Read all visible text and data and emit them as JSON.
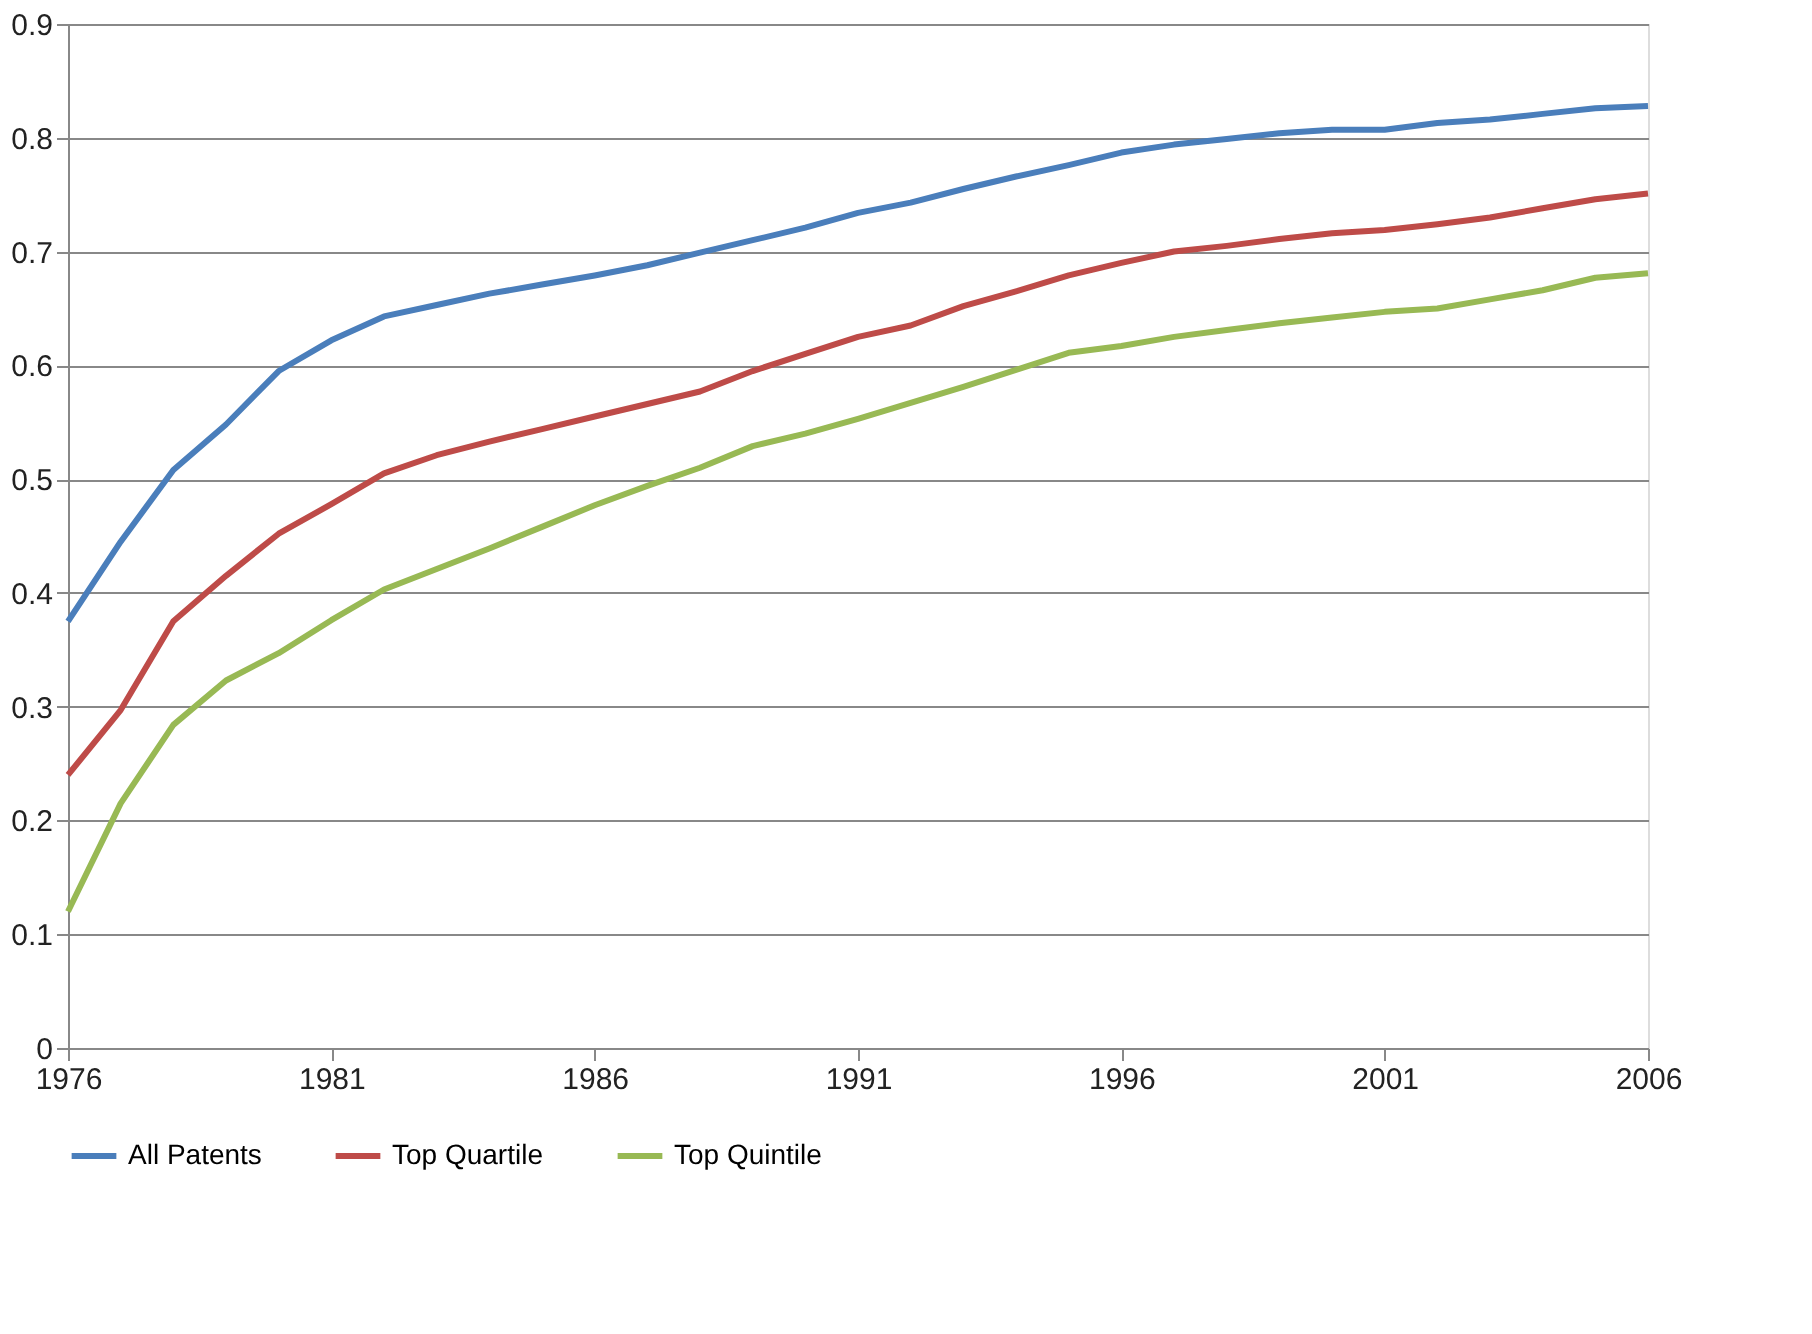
{
  "chart_data": {
    "type": "line",
    "x": [
      1976,
      1977,
      1978,
      1979,
      1980,
      1981,
      1982,
      1983,
      1984,
      1985,
      1986,
      1987,
      1988,
      1989,
      1990,
      1991,
      1992,
      1993,
      1994,
      1995,
      1996,
      1997,
      1998,
      1999,
      2000,
      2001,
      2002,
      2003,
      2004,
      2005,
      2006
    ],
    "series": [
      {
        "name": "All Patents",
        "color": "#4a7ebb",
        "values": [
          0.375,
          0.445,
          0.508,
          0.548,
          0.595,
          0.622,
          0.643,
          0.653,
          0.663,
          0.671,
          0.679,
          0.688,
          0.699,
          0.71,
          0.721,
          0.734,
          0.743,
          0.755,
          0.766,
          0.776,
          0.787,
          0.794,
          0.799,
          0.804,
          0.807,
          0.807,
          0.813,
          0.816,
          0.821,
          0.826,
          0.828
        ]
      },
      {
        "name": "Top Quartile",
        "color": "#be4b48",
        "values": [
          0.24,
          0.297,
          0.375,
          0.415,
          0.452,
          0.478,
          0.505,
          0.521,
          0.533,
          0.544,
          0.555,
          0.566,
          0.577,
          0.595,
          0.61,
          0.625,
          0.635,
          0.652,
          0.665,
          0.679,
          0.69,
          0.7,
          0.705,
          0.711,
          0.716,
          0.719,
          0.724,
          0.73,
          0.738,
          0.746,
          0.751
        ]
      },
      {
        "name": "Top Quintile",
        "color": "#98b954",
        "values": [
          0.12,
          0.215,
          0.284,
          0.323,
          0.347,
          0.376,
          0.403,
          0.421,
          0.439,
          0.458,
          0.477,
          0.494,
          0.51,
          0.529,
          0.54,
          0.553,
          0.567,
          0.581,
          0.596,
          0.611,
          0.617,
          0.625,
          0.631,
          0.637,
          0.642,
          0.647,
          0.65,
          0.658,
          0.666,
          0.677,
          0.681
        ]
      }
    ],
    "xlim": [
      1976,
      2006
    ],
    "xticks": [
      1976,
      1981,
      1986,
      1991,
      1996,
      2001,
      2006
    ],
    "ylim": [
      0,
      0.9
    ],
    "yticks": [
      0,
      0.1,
      0.2,
      0.3,
      0.4,
      0.5,
      0.6,
      0.7,
      0.8,
      0.9
    ],
    "grid": "y",
    "legend": "bottom",
    "marker": "none",
    "line_style": "solid"
  }
}
